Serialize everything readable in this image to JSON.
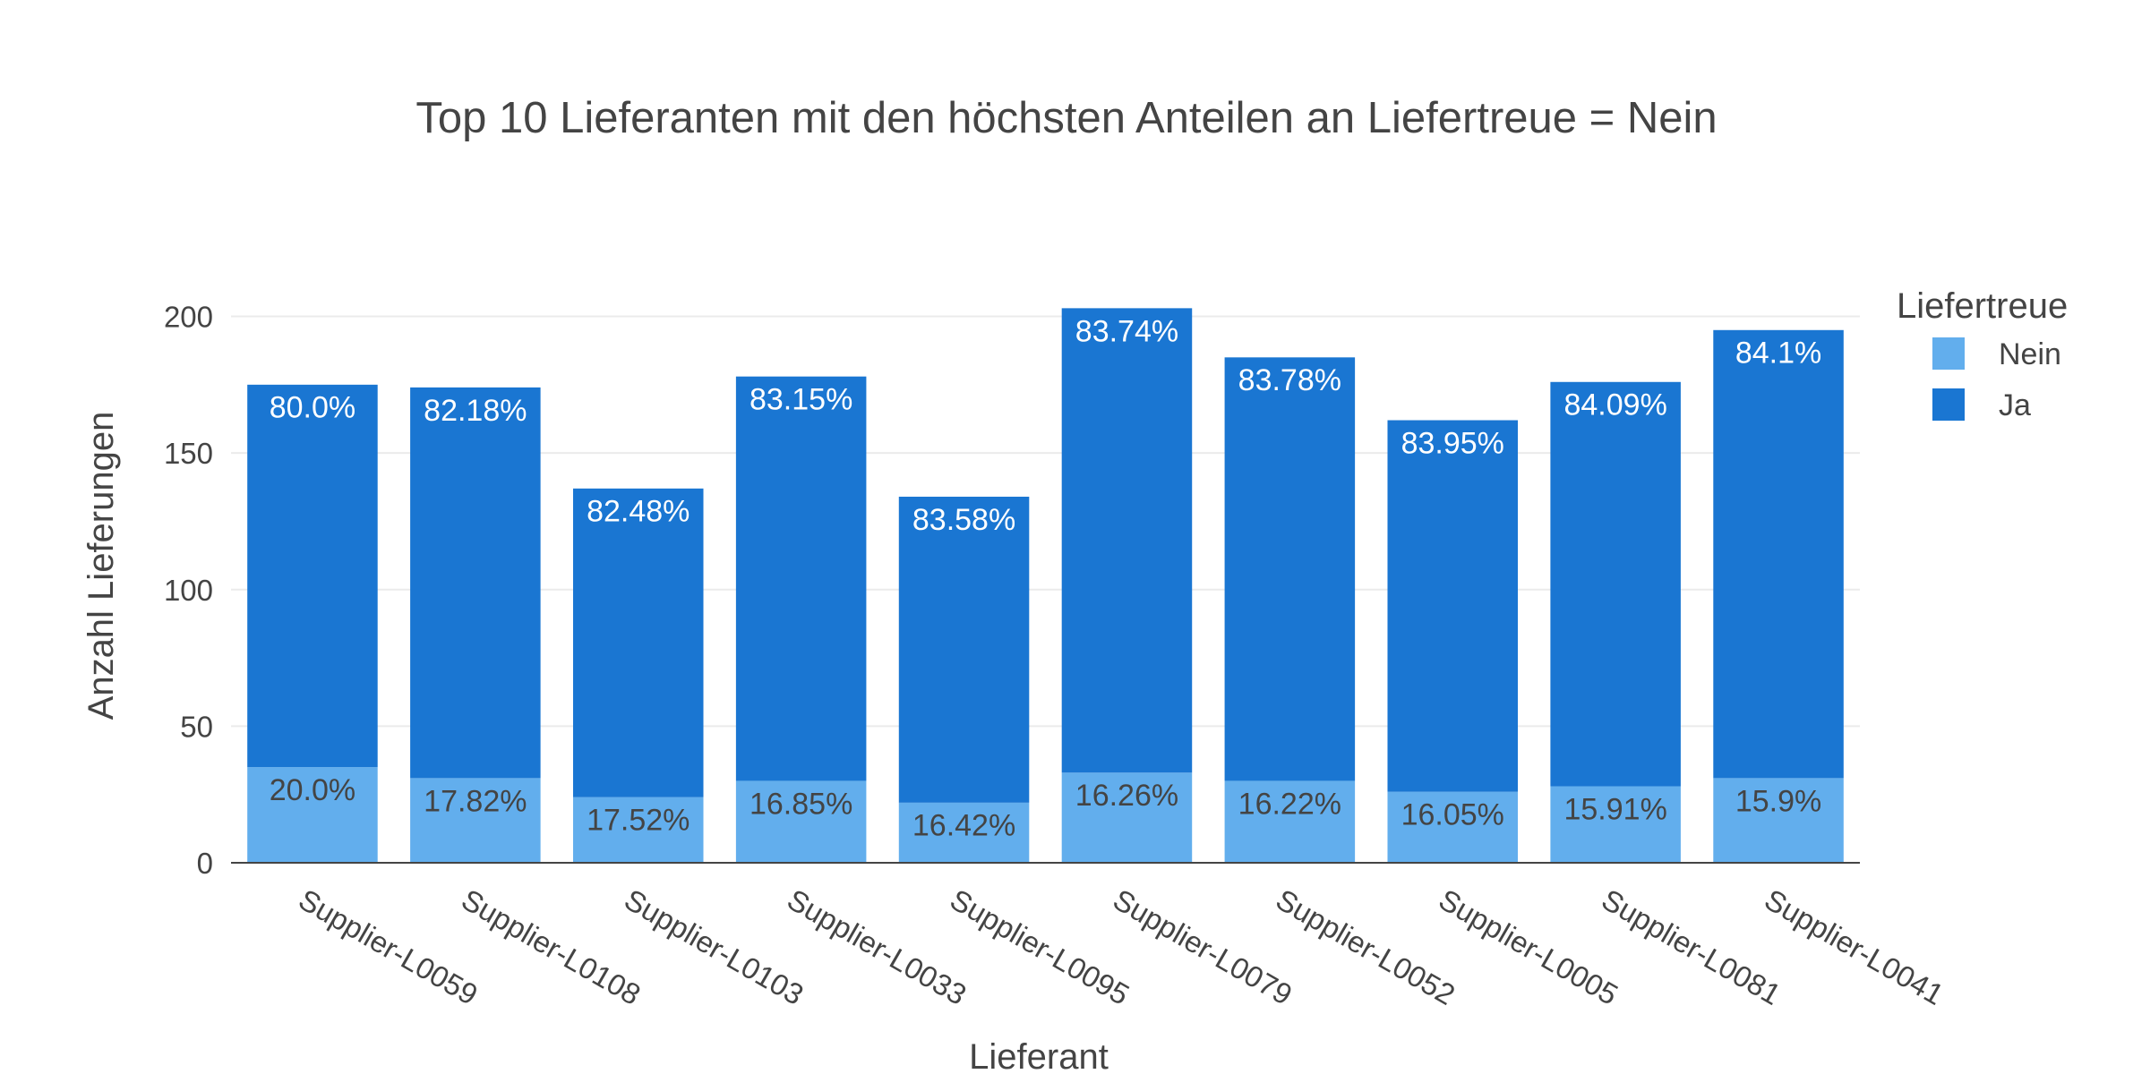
{
  "chart_data": {
    "type": "bar",
    "barmode": "stack",
    "title": "Top 10 Lieferanten mit den höchsten Anteilen an Liefertreue = Nein",
    "xlabel": "Lieferant",
    "ylabel": "Anzahl Lieferungen",
    "ylim": [
      0,
      210
    ],
    "yticks": [
      0,
      50,
      100,
      150,
      200
    ],
    "ytick_labels": [
      "0",
      "50",
      "100",
      "150",
      "200"
    ],
    "grid": true,
    "categories": [
      "Supplier-L0059",
      "Supplier-L0108",
      "Supplier-L0103",
      "Supplier-L0033",
      "Supplier-L0095",
      "Supplier-L0079",
      "Supplier-L0052",
      "Supplier-L0005",
      "Supplier-L0081",
      "Supplier-L0041"
    ],
    "legend": {
      "title": "Liefertreue",
      "position": "top-right"
    },
    "series": [
      {
        "name": "Nein",
        "color": "#62aeed",
        "label_color": "#444444",
        "values": [
          35,
          31,
          24,
          30,
          22,
          33,
          30,
          26,
          28,
          31
        ],
        "labels": [
          "20.0%",
          "17.82%",
          "17.52%",
          "16.85%",
          "16.42%",
          "16.26%",
          "16.22%",
          "16.05%",
          "15.91%",
          "15.9%"
        ]
      },
      {
        "name": "Ja",
        "color": "#1a76d2",
        "label_color": "#ffffff",
        "values": [
          140,
          143,
          113,
          148,
          112,
          170,
          155,
          136,
          148,
          164
        ],
        "labels": [
          "80.0%",
          "82.18%",
          "82.48%",
          "83.15%",
          "83.58%",
          "83.74%",
          "83.78%",
          "83.95%",
          "84.09%",
          "84.1%"
        ]
      }
    ]
  }
}
